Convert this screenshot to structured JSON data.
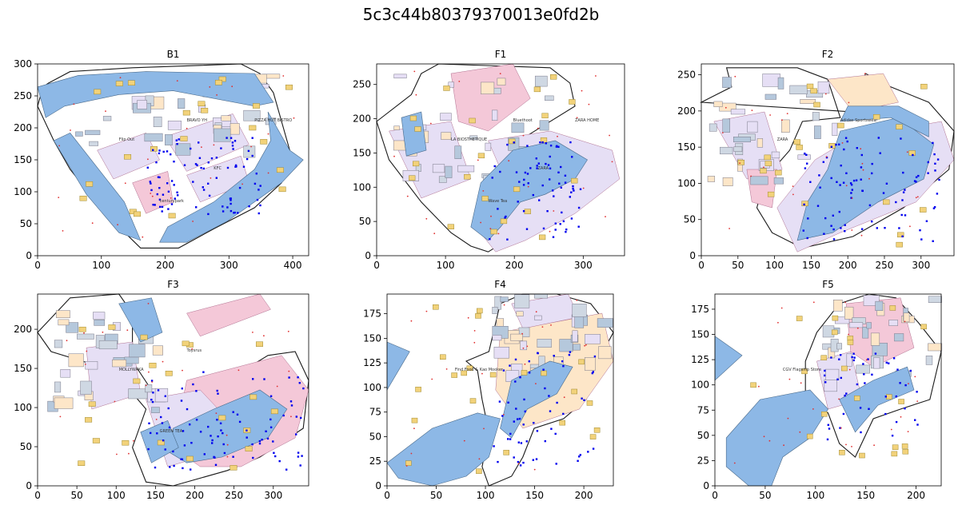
{
  "figure": {
    "title": "5c3c44b80379370013e0fd2b"
  },
  "colors": {
    "corridor": "#8db8e6",
    "shop_lavender": "#e6dff5",
    "shop_pink": "#f4c8d8",
    "shop_peach": "#fde6c8",
    "small_unit": "#f2d27a",
    "outline": "#1a1a1a",
    "nav_node": "#0000ee",
    "door_point": "#e03030"
  },
  "floors": [
    {
      "name": "B1",
      "x_ticks": [
        "0",
        "100",
        "200",
        "300",
        "400"
      ],
      "xlim": [
        0,
        425
      ],
      "y_ticks": [
        "0",
        "50",
        "100",
        "150",
        "200",
        "250",
        "300"
      ],
      "ylim": [
        0,
        300
      ],
      "labels": [
        "Flip Out",
        "BRAVO YH",
        "centurypark",
        "KFC",
        "PIZZA HUT BISTRO"
      ]
    },
    {
      "name": "F1",
      "x_ticks": [
        "0",
        "100",
        "200",
        "300"
      ],
      "xlim": [
        0,
        360
      ],
      "y_ticks": [
        "0",
        "50",
        "100",
        "150",
        "200",
        "250"
      ],
      "ylim": [
        0,
        280
      ],
      "labels": [
        "LA BIOSTHETIQUE",
        "Bluethoot",
        "Wave Tea",
        "ZARA",
        "ZARA HOME"
      ]
    },
    {
      "name": "F2",
      "x_ticks": [
        "0",
        "50",
        "100",
        "150",
        "200",
        "250",
        "300"
      ],
      "xlim": [
        0,
        345
      ],
      "y_ticks": [
        "0",
        "50",
        "100",
        "150",
        "200",
        "250"
      ],
      "ylim": [
        0,
        265
      ],
      "labels": [
        "ZARA",
        "Adidas Sportswear"
      ]
    },
    {
      "name": "F3",
      "x_ticks": [
        "0",
        "50",
        "100",
        "150",
        "200",
        "250",
        "300"
      ],
      "xlim": [
        0,
        345
      ],
      "y_ticks": [
        "0",
        "50",
        "100",
        "150",
        "200"
      ],
      "ylim": [
        0,
        245
      ],
      "labels": [
        "MOLLYWAKA",
        "Toysrus",
        "GREEN TEA"
      ]
    },
    {
      "name": "F4",
      "x_ticks": [
        "0",
        "50",
        "100",
        "150",
        "200"
      ],
      "xlim": [
        0,
        230
      ],
      "y_ticks": [
        "0",
        "25",
        "50",
        "75",
        "100",
        "125",
        "150",
        "175"
      ],
      "ylim": [
        0,
        195
      ],
      "labels": [
        "Find Food & Kao Mooker"
      ]
    },
    {
      "name": "F5",
      "x_ticks": [
        "0",
        "50",
        "100",
        "150",
        "200"
      ],
      "xlim": [
        0,
        225
      ],
      "y_ticks": [
        "0",
        "25",
        "50",
        "75",
        "100",
        "125",
        "150",
        "175"
      ],
      "ylim": [
        0,
        190
      ],
      "labels": [
        "CGV Flagship Store"
      ]
    }
  ]
}
